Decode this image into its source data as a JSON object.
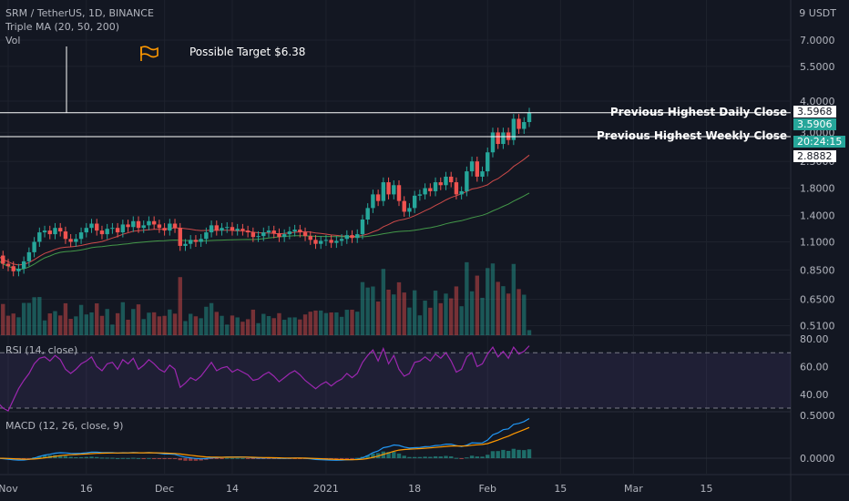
{
  "header": {
    "symbol_line": "SRM / TetherUS, 1D, BINANCE",
    "ma_label": "Triple MA (20, 50, 200)",
    "vol_label": "Vol"
  },
  "currency_label": "9 USDT",
  "annotations": {
    "target_text": "Possible Target $6.38",
    "daily_close_label": "Previous Highest Daily Close",
    "weekly_close_label": "Previous Highest Weekly Close"
  },
  "price_tags": {
    "daily_close": "3.5968",
    "current": "3.5906",
    "countdown": "20:24:15",
    "weekly_close": "2.8882"
  },
  "rsi_label": "RSI (14, close)",
  "macd_label": "MACD (12, 26, close, 9)",
  "colors": {
    "background": "#131722",
    "up": "#26a69a",
    "down": "#ef5350",
    "ma20": "#ef5350",
    "ma50": "#4caf50",
    "rsi": "#9c27b0",
    "macd": "#2196f3",
    "signal": "#ff9800",
    "flag": "#ff9800"
  },
  "chart_data": [
    {
      "type": "candlestick",
      "title": "SRM / TetherUS, 1D, BINANCE",
      "scale": "log",
      "y_ticks": [
        "7.0000",
        "5.5000",
        "4.0000",
        "3.0000",
        "2.3000",
        "1.8000",
        "1.4000",
        "1.1000",
        "0.8500",
        "0.6500",
        "0.5100"
      ],
      "x_ticks": [
        "Nov",
        "16",
        "Dec",
        "14",
        "2021",
        "18",
        "Feb",
        "15",
        "Mar",
        "15"
      ],
      "tick_dates": [
        "2020-11-01",
        "2020-11-16",
        "2020-12-01",
        "2020-12-14",
        "2021-01-01",
        "2021-01-18",
        "2021-02-01",
        "2021-02-15",
        "2021-03-01",
        "2021-03-15"
      ],
      "dates": [
        "2020-10-30",
        "2020-10-31",
        "2020-11-01",
        "2020-11-02",
        "2020-11-03",
        "2020-11-04",
        "2020-11-05",
        "2020-11-06",
        "2020-11-07",
        "2020-11-08",
        "2020-11-09",
        "2020-11-10",
        "2020-11-11",
        "2020-11-12",
        "2020-11-13",
        "2020-11-14",
        "2020-11-15",
        "2020-11-16",
        "2020-11-17",
        "2020-11-18",
        "2020-11-19",
        "2020-11-20",
        "2020-11-21",
        "2020-11-22",
        "2020-11-23",
        "2020-11-24",
        "2020-11-25",
        "2020-11-26",
        "2020-11-27",
        "2020-11-28",
        "2020-11-29",
        "2020-11-30",
        "2020-12-01",
        "2020-12-02",
        "2020-12-03",
        "2020-12-04",
        "2020-12-05",
        "2020-12-06",
        "2020-12-07",
        "2020-12-08",
        "2020-12-09",
        "2020-12-10",
        "2020-12-11",
        "2020-12-12",
        "2020-12-13",
        "2020-12-14",
        "2020-12-15",
        "2020-12-16",
        "2020-12-17",
        "2020-12-18",
        "2020-12-19",
        "2020-12-20",
        "2020-12-21",
        "2020-12-22",
        "2020-12-23",
        "2020-12-24",
        "2020-12-25",
        "2020-12-26",
        "2020-12-27",
        "2020-12-28",
        "2020-12-29",
        "2020-12-30",
        "2020-12-31",
        "2021-01-01",
        "2021-01-02",
        "2021-01-03",
        "2021-01-04",
        "2021-01-05",
        "2021-01-06",
        "2021-01-07",
        "2021-01-08",
        "2021-01-09",
        "2021-01-10",
        "2021-01-11",
        "2021-01-12",
        "2021-01-13",
        "2021-01-14",
        "2021-01-15",
        "2021-01-16",
        "2021-01-17",
        "2021-01-18",
        "2021-01-19",
        "2021-01-20",
        "2021-01-21",
        "2021-01-22",
        "2021-01-23",
        "2021-01-24",
        "2021-01-25",
        "2021-01-26",
        "2021-01-27",
        "2021-01-28",
        "2021-01-29",
        "2021-01-30",
        "2021-01-31",
        "2021-02-01",
        "2021-02-02",
        "2021-02-03",
        "2021-02-04",
        "2021-02-05",
        "2021-02-06",
        "2021-02-07",
        "2021-02-08",
        "2021-02-09"
      ],
      "close": [
        0.97,
        0.9,
        0.88,
        0.84,
        0.86,
        0.92,
        1.0,
        1.1,
        1.2,
        1.22,
        1.18,
        1.25,
        1.21,
        1.13,
        1.1,
        1.13,
        1.2,
        1.25,
        1.3,
        1.22,
        1.18,
        1.24,
        1.25,
        1.2,
        1.29,
        1.26,
        1.33,
        1.25,
        1.28,
        1.33,
        1.29,
        1.25,
        1.22,
        1.3,
        1.25,
        1.06,
        1.08,
        1.12,
        1.1,
        1.13,
        1.2,
        1.28,
        1.22,
        1.25,
        1.26,
        1.22,
        1.24,
        1.22,
        1.2,
        1.15,
        1.16,
        1.2,
        1.22,
        1.19,
        1.15,
        1.18,
        1.21,
        1.23,
        1.2,
        1.16,
        1.12,
        1.08,
        1.11,
        1.12,
        1.09,
        1.11,
        1.13,
        1.17,
        1.14,
        1.18,
        1.35,
        1.5,
        1.7,
        1.6,
        1.9,
        1.7,
        1.85,
        1.6,
        1.45,
        1.5,
        1.68,
        1.7,
        1.8,
        1.75,
        1.9,
        1.85,
        2.0,
        1.9,
        1.7,
        1.75,
        2.1,
        2.3,
        2.0,
        2.1,
        2.5,
        3.0,
        2.7,
        3.0,
        2.8,
        3.4,
        3.1,
        3.3,
        3.6
      ],
      "ma20_last": 2.4,
      "ma50_last": 1.8,
      "levels": {
        "previous_highest_daily_close": 3.5968,
        "previous_highest_weekly_close": 2.8882
      },
      "possible_target": 6.38
    },
    {
      "type": "bar",
      "title": "Vol",
      "note": "volume histogram, relative scale; color follows candle direction"
    },
    {
      "type": "line",
      "title": "RSI (14, close)",
      "ylim": [
        30,
        80
      ],
      "y_ticks": [
        "80.00",
        "60.00",
        "40.00"
      ],
      "bands": [
        70,
        30
      ],
      "values": [
        34,
        30,
        28,
        36,
        44,
        50,
        55,
        62,
        66,
        67,
        64,
        68,
        65,
        58,
        55,
        58,
        62,
        64,
        67,
        60,
        57,
        62,
        63,
        58,
        65,
        62,
        66,
        58,
        61,
        65,
        62,
        58,
        56,
        61,
        58,
        45,
        48,
        52,
        50,
        53,
        58,
        63,
        57,
        59,
        60,
        56,
        58,
        56,
        54,
        50,
        51,
        54,
        56,
        53,
        49,
        52,
        55,
        57,
        54,
        50,
        47,
        44,
        47,
        49,
        46,
        49,
        51,
        55,
        52,
        55,
        63,
        68,
        72,
        64,
        73,
        62,
        68,
        58,
        53,
        55,
        63,
        64,
        67,
        64,
        69,
        66,
        70,
        64,
        56,
        58,
        67,
        70,
        60,
        62,
        69,
        74,
        67,
        71,
        66,
        74,
        69,
        71,
        75
      ]
    },
    {
      "type": "line",
      "title": "MACD (12, 26, close, 9)",
      "y_ticks": [
        "0.5000",
        "0.0000"
      ],
      "series": [
        {
          "name": "MACD"
        },
        {
          "name": "Signal"
        }
      ]
    }
  ]
}
